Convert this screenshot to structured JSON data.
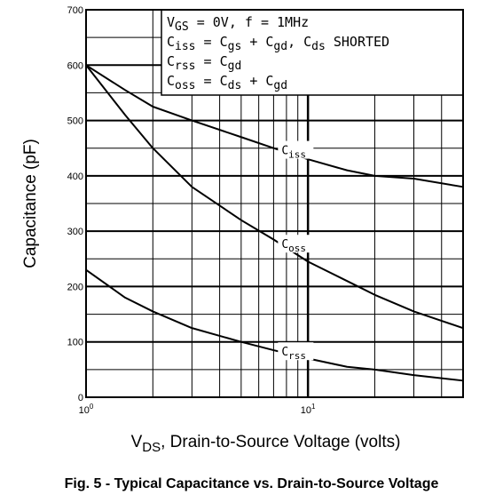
{
  "caption": "Fig. 5 - Typical Capacitance vs. Drain-to-Source Voltage",
  "chart_data": {
    "type": "line",
    "title": "",
    "xlabel": {
      "main": "V",
      "sub": "DS",
      "rest": ", Drain-to-Source Voltage (volts)"
    },
    "ylabel": "Capacitance (pF)",
    "x_scale": "log",
    "xlim": [
      1,
      50
    ],
    "ylim": [
      0,
      700
    ],
    "grid": true,
    "y_ticks": [
      0,
      100,
      200,
      300,
      400,
      500,
      600,
      700
    ],
    "y_tick_labels": [
      "0",
      "100",
      "200",
      "300",
      "400",
      "500",
      "600",
      "700"
    ],
    "x_tick_labels": [
      {
        "value": 1,
        "base": "10",
        "exp": "0"
      },
      {
        "value": 10,
        "base": "10",
        "exp": "1"
      }
    ],
    "legend_lines": [
      [
        {
          "t": "V"
        },
        {
          "t": "GS",
          "sub": true
        },
        {
          "t": " = 0V,  f = 1MHz"
        }
      ],
      [
        {
          "t": "C"
        },
        {
          "t": "iss",
          "sub": true
        },
        {
          "t": " = C"
        },
        {
          "t": "gs",
          "sub": true
        },
        {
          "t": " + C"
        },
        {
          "t": "gd",
          "sub": true
        },
        {
          "t": ",  C"
        },
        {
          "t": "ds",
          "sub": true
        },
        {
          "t": " SHORTED"
        }
      ],
      [
        {
          "t": "C"
        },
        {
          "t": "rss",
          "sub": true
        },
        {
          "t": " = C"
        },
        {
          "t": "gd",
          "sub": true
        }
      ],
      [
        {
          "t": "C"
        },
        {
          "t": "oss",
          "sub": true
        },
        {
          "t": " = C"
        },
        {
          "t": "ds",
          "sub": true
        },
        {
          "t": " + C"
        },
        {
          "t": "gd",
          "sub": true
        }
      ]
    ],
    "series": [
      {
        "name": "iss",
        "label_main": "C",
        "label_sub": "iss",
        "label_at": 7.6,
        "x": [
          1,
          1.5,
          2,
          3,
          5,
          7,
          10,
          15,
          20,
          30,
          50
        ],
        "y": [
          600,
          555,
          525,
          500,
          470,
          450,
          430,
          410,
          400,
          395,
          380
        ]
      },
      {
        "name": "oss",
        "label_main": "C",
        "label_sub": "oss",
        "label_at": 7.6,
        "x": [
          1,
          1.5,
          2,
          3,
          5,
          7,
          10,
          15,
          20,
          30,
          50
        ],
        "y": [
          600,
          510,
          450,
          380,
          320,
          285,
          245,
          210,
          185,
          155,
          125
        ]
      },
      {
        "name": "rss",
        "label_main": "C",
        "label_sub": "rss",
        "label_at": 7.6,
        "x": [
          1,
          1.5,
          2,
          3,
          5,
          7,
          10,
          15,
          20,
          30,
          50
        ],
        "y": [
          230,
          180,
          155,
          125,
          100,
          85,
          70,
          55,
          50,
          40,
          30
        ]
      }
    ]
  }
}
